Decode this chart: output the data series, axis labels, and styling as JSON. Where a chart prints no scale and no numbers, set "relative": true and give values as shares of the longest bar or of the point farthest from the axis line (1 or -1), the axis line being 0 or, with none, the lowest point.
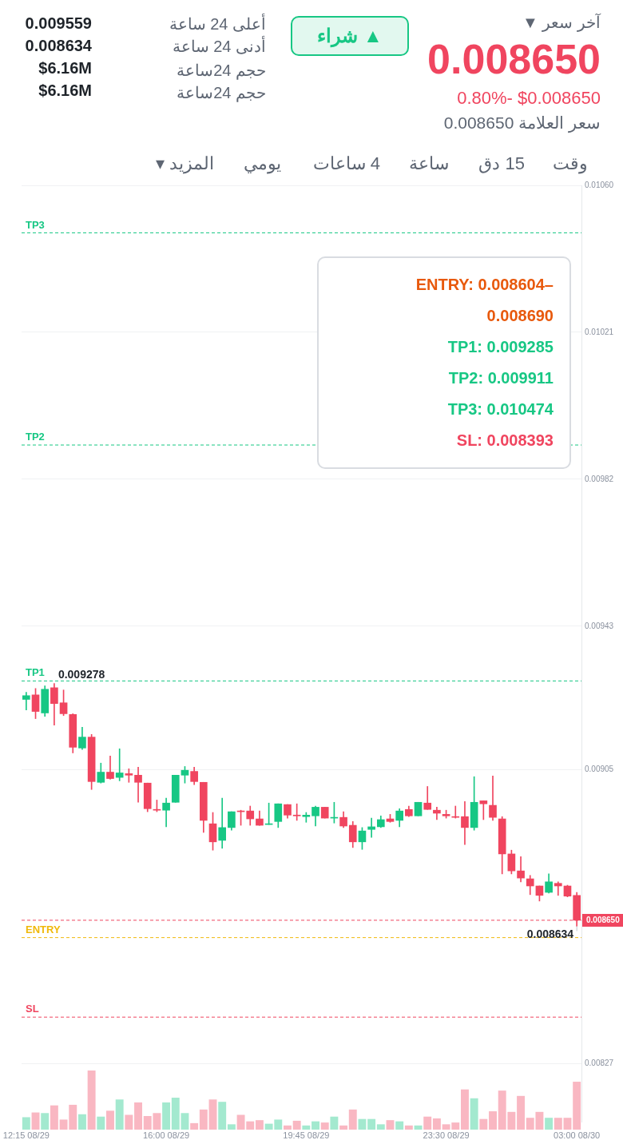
{
  "chart_data": [
    {
      "type": "other",
      "annotations": [
        "آخر سعر ▼",
        "0.008650",
        "0.80%-  $0.008650",
        "سعر العلامة 0.008650",
        "▲ شراء",
        "أعلى 24 ساعة",
        "0.009559",
        "أدنى 24 ساعة",
        "0.008634",
        "حجم 24ساعة",
        "$6.16M",
        "حجم 24ساعة",
        "$6.16M",
        "وقت",
        "15 دق",
        "ساعة",
        "4 ساعات",
        "يومي",
        "المزيد ▾"
      ]
    },
    {
      "type": "candlestick",
      "grid": "y",
      "ylim": [
        0.008114,
        0.0106
      ],
      "yticks": [
        {
          "value": 0.0106,
          "label": "0.01060"
        },
        0.01021,
        0.00982,
        0.00943,
        0.00905,
        0.00827
      ],
      "categories": [
        "12:15 08/29",
        null,
        null,
        null,
        null,
        null,
        null,
        null,
        null,
        null,
        null,
        null,
        null,
        null,
        null,
        "16:00 08/29",
        null,
        null,
        null,
        null,
        null,
        null,
        null,
        null,
        null,
        null,
        null,
        null,
        null,
        null,
        "19:45 08/29",
        null,
        null,
        null,
        null,
        null,
        null,
        null,
        null,
        null,
        null,
        null,
        null,
        null,
        null,
        "23:30 08/29",
        null,
        null,
        null,
        null,
        null,
        null,
        null,
        null,
        null,
        null,
        null,
        null,
        null,
        "03:00 08/30"
      ],
      "ohlc": [
        [
          0.009236,
          0.009255,
          0.009208,
          0.009246
        ],
        [
          0.009248,
          0.009265,
          0.009185,
          0.009204
        ],
        [
          0.0092,
          0.009272,
          0.009191,
          0.009263
        ],
        [
          0.009267,
          0.009278,
          0.009168,
          0.009225
        ],
        [
          0.009227,
          0.009261,
          0.009193,
          0.009198
        ],
        [
          0.009196,
          0.009198,
          0.009094,
          0.009109
        ],
        [
          0.009107,
          0.009162,
          0.009103,
          0.009136
        ],
        [
          0.009136,
          0.009143,
          0.008997,
          0.009018
        ],
        [
          0.009016,
          0.009067,
          0.009014,
          0.009043
        ],
        [
          0.009043,
          0.009086,
          0.009024,
          0.009026
        ],
        [
          0.009029,
          0.009105,
          0.00902,
          0.009041
        ],
        [
          0.009039,
          0.009052,
          0.009016,
          0.009035
        ],
        [
          0.009035,
          0.009056,
          0.008963,
          0.009016
        ],
        [
          0.009014,
          0.009014,
          0.008938,
          0.008946
        ],
        [
          0.008944,
          0.008969,
          0.008938,
          0.008942
        ],
        [
          0.008942,
          0.008974,
          0.008898,
          0.008961
        ],
        [
          0.008963,
          0.009035,
          0.008963,
          0.009035
        ],
        [
          0.009035,
          0.009058,
          0.009014,
          0.009048
        ],
        [
          0.009045,
          0.009056,
          0.00901,
          0.009018
        ],
        [
          0.009016,
          0.009016,
          0.008883,
          0.008915
        ],
        [
          0.008906,
          0.008936,
          0.008836,
          0.008858
        ],
        [
          0.008862,
          0.008974,
          0.008841,
          0.008896
        ],
        [
          0.008896,
          0.008938,
          0.008889,
          0.008938
        ],
        [
          0.00894,
          0.008942,
          0.008902,
          0.008938
        ],
        [
          0.00894,
          0.008953,
          0.008902,
          0.008919
        ],
        [
          0.008919,
          0.00894,
          0.008902,
          0.008902
        ],
        [
          0.008904,
          0.008961,
          0.008904,
          0.008906
        ],
        [
          0.008912,
          0.008959,
          0.008896,
          0.008959
        ],
        [
          0.008957,
          0.008957,
          0.008921,
          0.008929
        ],
        [
          0.008929,
          0.008959,
          0.008915,
          0.008927
        ],
        [
          0.008925,
          0.008936,
          0.00891,
          0.008929
        ],
        [
          0.008927,
          0.008953,
          0.0089,
          0.00895
        ],
        [
          0.00895,
          0.00895,
          0.008921,
          0.008921
        ],
        [
          0.008921,
          0.008963,
          0.008908,
          0.008923
        ],
        [
          0.008923,
          0.008938,
          0.008896,
          0.0089
        ],
        [
          0.008902,
          0.008912,
          0.008843,
          0.008858
        ],
        [
          0.008858,
          0.008896,
          0.008838,
          0.008887
        ],
        [
          0.008891,
          0.008921,
          0.00887,
          0.008898
        ],
        [
          0.008898,
          0.008927,
          0.008896,
          0.008917
        ],
        [
          0.008919,
          0.008931,
          0.00891,
          0.008912
        ],
        [
          0.008915,
          0.008946,
          0.008898,
          0.00894
        ],
        [
          0.008944,
          0.008953,
          0.008925,
          0.008927
        ],
        [
          0.008927,
          0.008963,
          0.008927,
          0.008963
        ],
        [
          0.008961,
          0.009005,
          0.008944,
          0.008944
        ],
        [
          0.008942,
          0.00895,
          0.008917,
          0.008934
        ],
        [
          0.008931,
          0.008942,
          0.008921,
          0.008927
        ],
        [
          0.008925,
          0.008953,
          0.008921,
          0.008923
        ],
        [
          0.008925,
          0.008965,
          0.008851,
          0.008896
        ],
        [
          0.008896,
          0.009031,
          0.008889,
          0.008963
        ],
        [
          0.008967,
          0.008967,
          0.008917,
          0.008959
        ],
        [
          0.008955,
          0.009033,
          0.008915,
          0.008923
        ],
        [
          0.008919,
          0.008925,
          0.008773,
          0.008826
        ],
        [
          0.008826,
          0.008836,
          0.008773,
          0.008781
        ],
        [
          0.008781,
          0.008819,
          0.008752,
          0.008762
        ],
        [
          0.00876,
          0.008769,
          0.008718,
          0.008741
        ],
        [
          0.008741,
          0.008741,
          0.008701,
          0.008716
        ],
        [
          0.008724,
          0.008773,
          0.008722,
          0.008752
        ],
        [
          0.008748,
          0.008752,
          0.008716,
          0.008741
        ],
        [
          0.008741,
          0.008743,
          0.008712,
          0.008714
        ],
        [
          0.008716,
          0.008724,
          0.008634,
          0.00865
        ]
      ],
      "colors": [
        "#17c784",
        "#f0455f",
        "#17c784",
        "#f0455f",
        "#f0455f",
        "#f0455f",
        "#17c784",
        "#f0455f",
        "#17c784",
        "#f0455f",
        "#17c784",
        "#f0455f",
        "#f0455f",
        "#f0455f",
        "#f0455f",
        "#17c784",
        "#17c784",
        "#17c784",
        "#f0455f",
        "#f0455f",
        "#f0455f",
        "#17c784",
        "#17c784",
        "#f0455f",
        "#f0455f",
        "#f0455f",
        "#17c784",
        "#17c784",
        "#f0455f",
        "#f0455f",
        "#17c784",
        "#17c784",
        "#f0455f",
        "#17c784",
        "#f0455f",
        "#f0455f",
        "#17c784",
        "#17c784",
        "#17c784",
        "#f0455f",
        "#17c784",
        "#f0455f",
        "#17c784",
        "#f0455f",
        "#f0455f",
        "#f0455f",
        "#f0455f",
        "#f0455f",
        "#17c784",
        "#f0455f",
        "#f0455f",
        "#f0455f",
        "#f0455f",
        "#f0455f",
        "#f0455f",
        "#f0455f",
        "#17c784",
        "#f0455f",
        "#f0455f",
        "#f0455f"
      ],
      "ref_lines": [
        {
          "axis": "y",
          "value": 0.010474,
          "label": "TP3",
          "color": "#17c784",
          "line_style": "dashed"
        },
        {
          "axis": "y",
          "value": 0.009911,
          "label": "TP2",
          "color": "#17c784",
          "line_style": "dashed"
        },
        {
          "axis": "y",
          "value": 0.009285,
          "label": "TP1",
          "color": "#17c784",
          "line_style": "dashed"
        },
        {
          "axis": "y",
          "value": 0.00865,
          "label": "0.008650",
          "color": "#f0455f",
          "line_style": "dashed"
        },
        {
          "axis": "y",
          "value": 0.008604,
          "label": "ENTRY",
          "color": "#f0b90b",
          "line_style": "dashed"
        },
        {
          "axis": "y",
          "value": 0.008393,
          "label": "SL",
          "color": "#f0455f",
          "line_style": "dashed"
        }
      ],
      "annotations": [
        "ENTRY: 0.008604–0.008690",
        "TP1: 0.009285",
        "TP2: 0.009911",
        "TP3: 0.010474",
        "SL: 0.008393",
        {
          "text": "0.009278",
          "y": 0.009278
        },
        {
          "text": "0.008634",
          "x": "03:00 08/30",
          "y": 0.008634
        }
      ]
    },
    {
      "type": "bar",
      "relative": true,
      "categories": [
        null,
        null,
        null,
        null,
        null,
        null,
        null,
        null,
        null,
        null,
        null,
        null,
        null,
        null,
        null,
        null,
        null,
        null,
        null,
        null,
        null,
        null,
        null,
        null,
        null,
        null,
        null,
        null,
        null,
        null,
        null,
        null,
        null,
        null,
        null,
        null,
        null,
        null,
        null,
        null,
        null,
        null,
        null,
        null,
        null,
        null,
        null,
        null,
        null,
        null,
        null,
        null,
        null,
        null,
        null,
        null,
        null,
        null,
        null,
        null
      ],
      "values": [
        0.21,
        0.29,
        0.28,
        0.41,
        0.17,
        0.42,
        0.26,
        1,
        0.22,
        0.32,
        0.51,
        0.25,
        0.46,
        0.23,
        0.28,
        0.46,
        0.54,
        0.28,
        0.11,
        0.34,
        0.51,
        0.47,
        0.09,
        0.25,
        0.14,
        0.16,
        0.1,
        0.17,
        0.07,
        0.15,
        0.07,
        0.14,
        0.12,
        0.22,
        0.07,
        0.34,
        0.18,
        0.18,
        0.09,
        0.16,
        0.14,
        0.07,
        0.07,
        0.22,
        0.19,
        0.09,
        0.12,
        0.68,
        0.53,
        0.18,
        0.31,
        0.66,
        0.3,
        0.57,
        0.2,
        0.3,
        0.2,
        0.2,
        0.2,
        0.81
      ],
      "colors": [
        "#a3e9cf",
        "#f9b7c2",
        "#a3e9cf",
        "#f9b7c2",
        "#f9b7c2",
        "#f9b7c2",
        "#a3e9cf",
        "#f9b7c2",
        "#a3e9cf",
        "#f9b7c2",
        "#a3e9cf",
        "#f9b7c2",
        "#f9b7c2",
        "#f9b7c2",
        "#f9b7c2",
        "#a3e9cf",
        "#a3e9cf",
        "#a3e9cf",
        "#f9b7c2",
        "#f9b7c2",
        "#f9b7c2",
        "#a3e9cf",
        "#a3e9cf",
        "#f9b7c2",
        "#f9b7c2",
        "#f9b7c2",
        "#a3e9cf",
        "#a3e9cf",
        "#f9b7c2",
        "#f9b7c2",
        "#a3e9cf",
        "#a3e9cf",
        "#f9b7c2",
        "#a3e9cf",
        "#f9b7c2",
        "#f9b7c2",
        "#a3e9cf",
        "#a3e9cf",
        "#a3e9cf",
        "#f9b7c2",
        "#a3e9cf",
        "#f9b7c2",
        "#a3e9cf",
        "#f9b7c2",
        "#f9b7c2",
        "#f9b7c2",
        "#f9b7c2",
        "#f9b7c2",
        "#a3e9cf",
        "#f9b7c2",
        "#f9b7c2",
        "#f9b7c2",
        "#f9b7c2",
        "#f9b7c2",
        "#f9b7c2",
        "#f9b7c2",
        "#a3e9cf",
        "#f9b7c2",
        "#f9b7c2",
        "#f9b7c2"
      ]
    }
  ]
}
